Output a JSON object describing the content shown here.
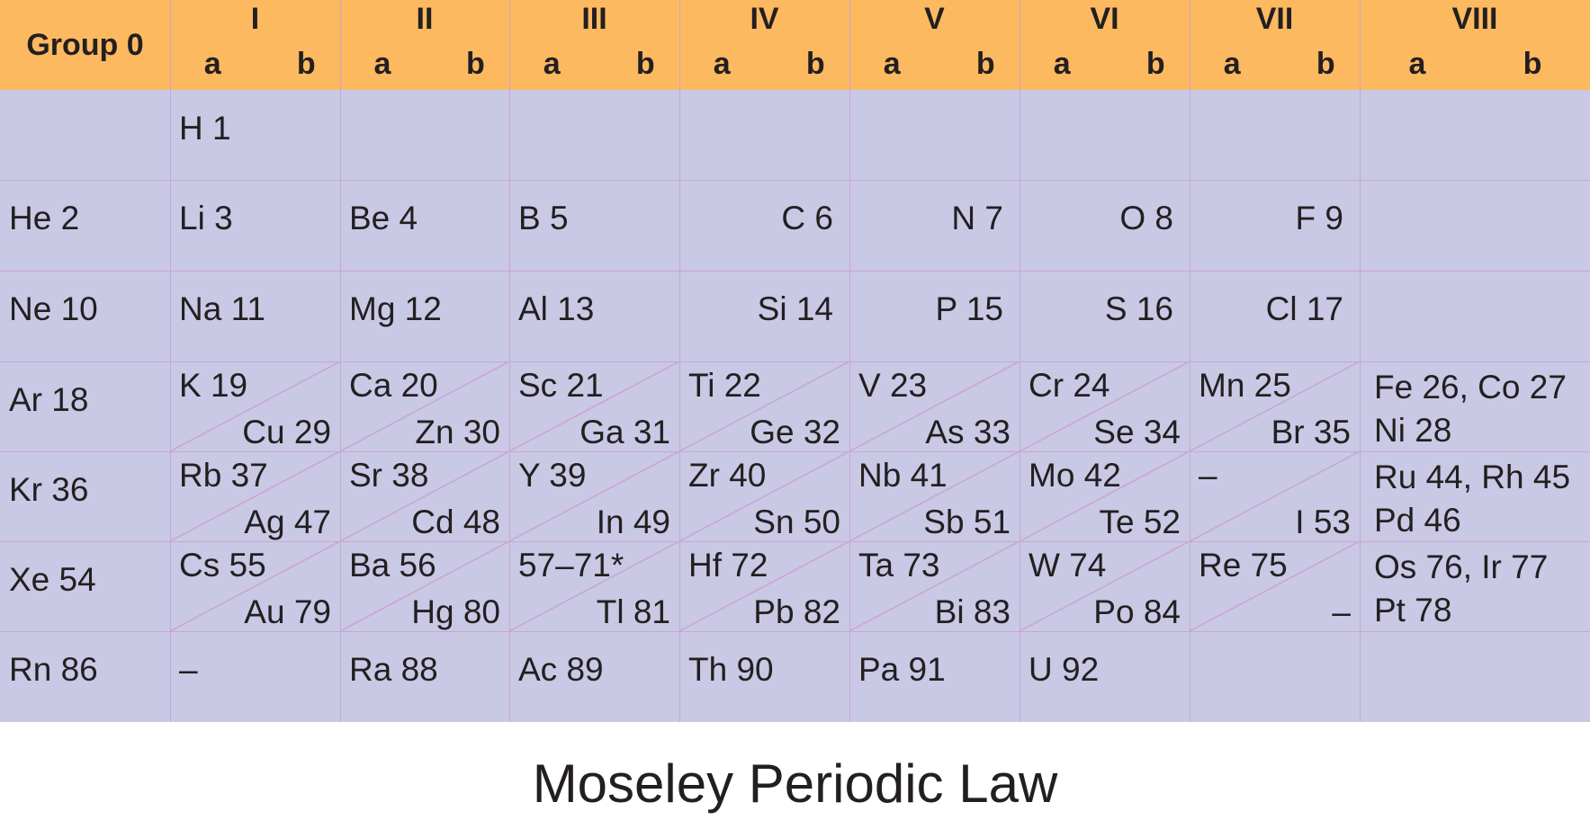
{
  "title": "Moseley Periodic Law",
  "colors": {
    "header": "#fcb960",
    "body": "#c9c8e5",
    "gridline": "#c9a6cf"
  },
  "header": {
    "group0": "Group 0",
    "groups": [
      {
        "roman": "I",
        "a": "a",
        "b": "b"
      },
      {
        "roman": "II",
        "a": "a",
        "b": "b"
      },
      {
        "roman": "III",
        "a": "a",
        "b": "b"
      },
      {
        "roman": "IV",
        "a": "a",
        "b": "b"
      },
      {
        "roman": "V",
        "a": "a",
        "b": "b"
      },
      {
        "roman": "VI",
        "a": "a",
        "b": "b"
      },
      {
        "roman": "VII",
        "a": "a",
        "b": "b"
      },
      {
        "roman": "VIII",
        "a": "a",
        "b": "b"
      }
    ]
  },
  "rows": [
    {
      "g0": "",
      "cells": [
        {
          "type": "left",
          "text": "H 1"
        },
        {
          "type": "empty"
        },
        {
          "type": "empty"
        },
        {
          "type": "empty"
        },
        {
          "type": "empty"
        },
        {
          "type": "empty"
        },
        {
          "type": "empty"
        },
        {
          "type": "empty"
        }
      ]
    },
    {
      "g0": "He 2",
      "cells": [
        {
          "type": "left",
          "text": "Li 3"
        },
        {
          "type": "left",
          "text": "Be 4"
        },
        {
          "type": "left",
          "text": "B 5"
        },
        {
          "type": "right",
          "text": "C 6"
        },
        {
          "type": "right",
          "text": "N 7"
        },
        {
          "type": "right",
          "text": "O 8"
        },
        {
          "type": "right",
          "text": "F 9"
        },
        {
          "type": "empty"
        }
      ]
    },
    {
      "g0": "Ne 10",
      "cells": [
        {
          "type": "left",
          "text": "Na 11"
        },
        {
          "type": "left",
          "text": "Mg 12"
        },
        {
          "type": "left",
          "text": "Al 13"
        },
        {
          "type": "right",
          "text": "Si 14"
        },
        {
          "type": "right",
          "text": "P 15"
        },
        {
          "type": "right",
          "text": "S 16"
        },
        {
          "type": "right",
          "text": "Cl 17"
        },
        {
          "type": "empty"
        }
      ]
    },
    {
      "g0": "Ar 18",
      "cells": [
        {
          "type": "split",
          "a": "K 19",
          "b": "Cu 29"
        },
        {
          "type": "split",
          "a": "Ca 20",
          "b": "Zn 30"
        },
        {
          "type": "split",
          "a": "Sc 21",
          "b": "Ga 31"
        },
        {
          "type": "split",
          "a": "Ti 22",
          "b": "Ge 32"
        },
        {
          "type": "split",
          "a": "V 23",
          "b": "As 33"
        },
        {
          "type": "split",
          "a": "Cr 24",
          "b": "Se 34"
        },
        {
          "type": "split",
          "a": "Mn 25",
          "b": "Br 35"
        },
        {
          "type": "triad",
          "line1": "Fe 26, Co 27",
          "line2": "Ni 28"
        }
      ]
    },
    {
      "g0": "Kr 36",
      "cells": [
        {
          "type": "split",
          "a": "Rb 37",
          "b": "Ag 47"
        },
        {
          "type": "split",
          "a": "Sr 38",
          "b": "Cd 48"
        },
        {
          "type": "split",
          "a": "Y 39",
          "b": "In 49"
        },
        {
          "type": "split",
          "a": "Zr 40",
          "b": "Sn 50"
        },
        {
          "type": "split",
          "a": "Nb 41",
          "b": "Sb 51"
        },
        {
          "type": "split",
          "a": "Mo 42",
          "b": "Te 52"
        },
        {
          "type": "split",
          "a": "–",
          "b": "I 53"
        },
        {
          "type": "triad",
          "line1": "Ru 44, Rh 45",
          "line2": "Pd 46"
        }
      ]
    },
    {
      "g0": "Xe 54",
      "cells": [
        {
          "type": "split",
          "a": "Cs 55",
          "b": "Au 79"
        },
        {
          "type": "split",
          "a": "Ba 56",
          "b": "Hg 80"
        },
        {
          "type": "split",
          "a": "57–71*",
          "b": "Tl 81"
        },
        {
          "type": "split",
          "a": "Hf 72",
          "b": "Pb 82"
        },
        {
          "type": "split",
          "a": "Ta 73",
          "b": "Bi 83"
        },
        {
          "type": "split",
          "a": "W 74",
          "b": "Po 84"
        },
        {
          "type": "split",
          "a": "Re 75",
          "b": "–"
        },
        {
          "type": "triad",
          "line1": "Os 76, Ir 77",
          "line2": "Pt 78"
        }
      ]
    },
    {
      "g0": "Rn 86",
      "cells": [
        {
          "type": "left",
          "text": "–"
        },
        {
          "type": "left",
          "text": "Ra 88"
        },
        {
          "type": "left",
          "text": "Ac 89"
        },
        {
          "type": "left",
          "text": "Th 90"
        },
        {
          "type": "left",
          "text": "Pa 91"
        },
        {
          "type": "left",
          "text": "U 92"
        },
        {
          "type": "empty"
        },
        {
          "type": "empty"
        }
      ]
    }
  ]
}
